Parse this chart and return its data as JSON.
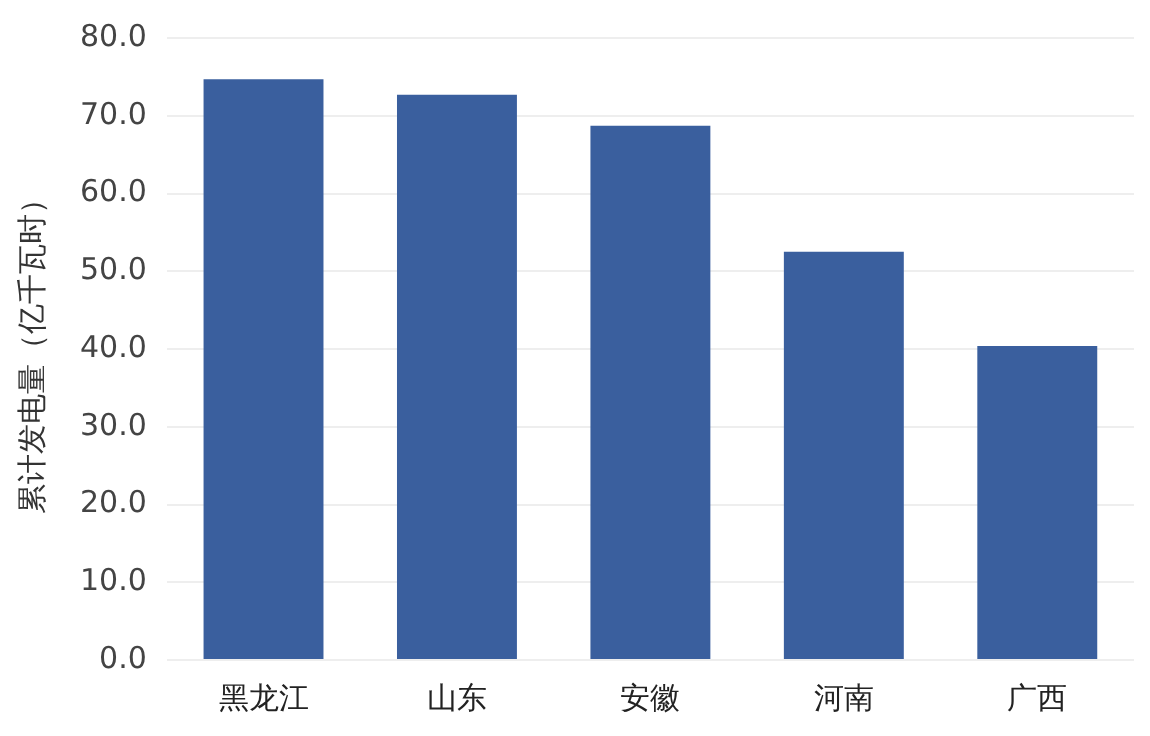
{
  "chart_data": {
    "type": "bar",
    "ylabel": "累计发电量（亿千瓦时）",
    "categories": [
      "黑龙江",
      "山东",
      "安徽",
      "河南",
      "广西"
    ],
    "values": [
      74.7,
      72.7,
      68.7,
      52.5,
      40.4
    ],
    "color": "#3a5f9e",
    "ylim": [
      0,
      80
    ],
    "yticks": [
      {
        "value": 0,
        "label": "0.0"
      },
      {
        "value": 10,
        "label": "10.0"
      },
      {
        "value": 20,
        "label": "20.0"
      },
      {
        "value": 30,
        "label": "30.0"
      },
      {
        "value": 40,
        "label": "40.0"
      },
      {
        "value": 50,
        "label": "50.0"
      },
      {
        "value": 60,
        "label": "60.0"
      },
      {
        "value": 70,
        "label": "70.0"
      },
      {
        "value": 80,
        "label": "80.0"
      }
    ],
    "grid": "y",
    "legend": false
  }
}
